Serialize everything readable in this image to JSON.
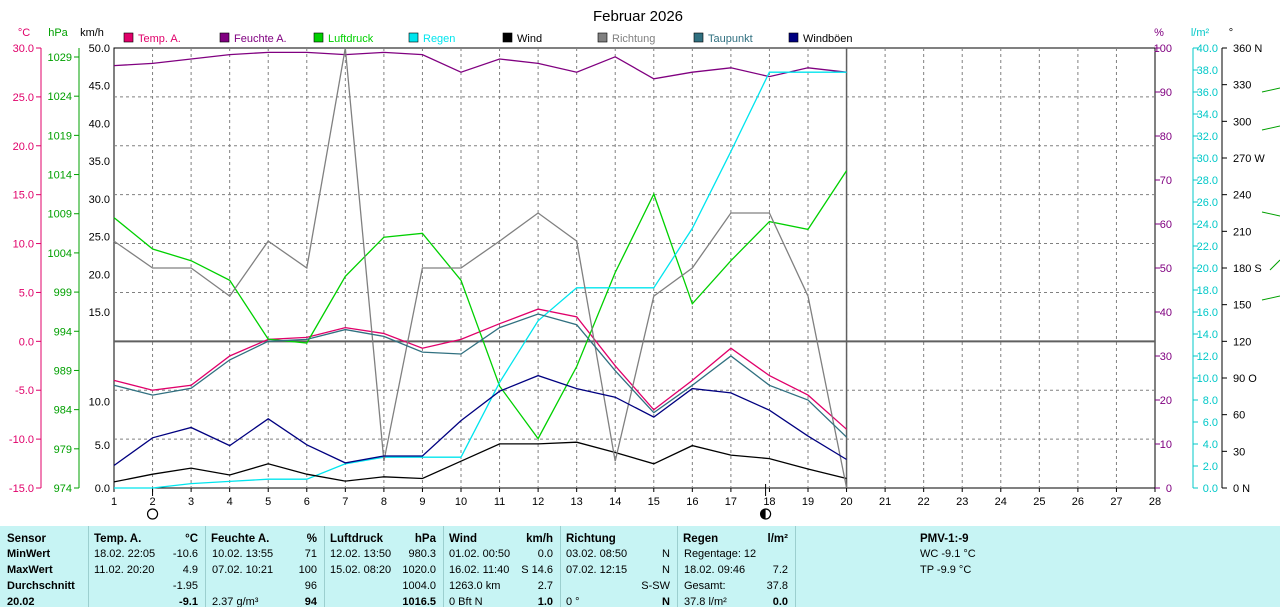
{
  "chart_data": {
    "type": "line",
    "title": "Februar 2026",
    "axis_units": {
      "temp": "°C",
      "pressure": "hPa",
      "wind": "km/h",
      "humidity": "%",
      "rain": "l/m²",
      "direction": "°"
    },
    "axes": {
      "temp_ticks": [
        "30.0",
        "25.0",
        "20.0",
        "15.0",
        "10.0",
        "5.0",
        "0.0",
        "-5.0",
        "-10.0",
        "-15.0"
      ],
      "temp_range": [
        -15,
        30
      ],
      "pressure_ticks": [
        "1029",
        "1024",
        "1019",
        "1014",
        "1009",
        "1004",
        "999",
        "994",
        "989",
        "984",
        "979",
        "974"
      ],
      "pressure_range": [
        974,
        1029
      ],
      "wind_upper_ticks": [
        "50.0",
        "45.0",
        "40.0",
        "35.0",
        "30.0",
        "25.0",
        "20.0"
      ],
      "wind_lower_ticks": [
        "15.0",
        "10.0",
        "5.0",
        "0.0"
      ],
      "wind_upper_range": [
        15,
        50
      ],
      "wind_lower_range": [
        0,
        17
      ],
      "humidity_ticks": [
        "100",
        "90",
        "80",
        "70",
        "60",
        "50",
        "40",
        "30",
        "20",
        "10",
        "0"
      ],
      "humidity_range": [
        0,
        100
      ],
      "rain_ticks": [
        "40.0",
        "38.0",
        "36.0",
        "34.0",
        "32.0",
        "30.0",
        "28.0",
        "26.0",
        "24.0",
        "22.0",
        "20.0",
        "18.0",
        "16.0",
        "14.0",
        "12.0",
        "10.0",
        "8.0",
        "6.0",
        "4.0",
        "2.0",
        "0.0"
      ],
      "rain_range": [
        0,
        40
      ],
      "direction_ticks": [
        "360 N",
        "330",
        "300",
        "270 W",
        "240",
        "210",
        "180 S",
        "150",
        "120",
        "90 O",
        "60",
        "30",
        "0 N"
      ],
      "direction_range": [
        0,
        360
      ],
      "x_ticks": [
        "1",
        "2",
        "3",
        "4",
        "5",
        "6",
        "7",
        "8",
        "9",
        "10",
        "11",
        "12",
        "13",
        "14",
        "15",
        "16",
        "17",
        "18",
        "19",
        "20",
        "21",
        "22",
        "23",
        "24",
        "25",
        "26",
        "27",
        "28"
      ],
      "x_range": [
        1,
        28
      ],
      "moon_first_quarter_day": 2,
      "moon_full_day": 17.9
    },
    "legend": [
      {
        "name": "Temp. A.",
        "color": "#e0006a"
      },
      {
        "name": "Feuchte A.",
        "color": "#800080"
      },
      {
        "name": "Luftdruck",
        "color": "#00d000"
      },
      {
        "name": "Regen",
        "color": "#00e5ee"
      },
      {
        "name": "Wind",
        "color": "#000000"
      },
      {
        "name": "Richtung",
        "color": "#808080"
      },
      {
        "name": "Taupunkt",
        "color": "#307080"
      },
      {
        "name": "Windböen",
        "color": "#000080"
      }
    ],
    "x": [
      1,
      2,
      3,
      4,
      5,
      6,
      7,
      8,
      9,
      10,
      11,
      12,
      13,
      14,
      15,
      16,
      17,
      18,
      19,
      20
    ],
    "series": [
      {
        "name": "Temp. A.",
        "axis": "temp",
        "color": "#e0006a",
        "values": [
          -4,
          -5,
          -4.5,
          -1.5,
          0.2,
          0.4,
          1.4,
          0.8,
          -0.7,
          0.2,
          1.8,
          3.3,
          2.5,
          -2.5,
          -7,
          -4,
          -0.7,
          -3.5,
          -5.5,
          -9
        ]
      },
      {
        "name": "Feuchte A.",
        "axis": "humidity",
        "color": "#800080",
        "values": [
          96,
          96.5,
          97.5,
          98.5,
          99,
          99,
          98.5,
          99,
          98.5,
          94.5,
          97.5,
          96.5,
          94.5,
          98,
          93,
          94.5,
          95.5,
          93.5,
          95.5,
          94.5
        ]
      },
      {
        "name": "Luftdruck",
        "axis": "pressure",
        "color": "#00d000",
        "values": [
          1008.5,
          1004.5,
          1003,
          1000.5,
          993,
          992.5,
          1001,
          1006,
          1006.5,
          1000.5,
          987,
          980.3,
          989.5,
          1001.5,
          1011.5,
          997.5,
          1003,
          1008,
          1007,
          1014.5
        ]
      },
      {
        "name": "Regen",
        "axis": "rain",
        "color": "#00e5ee",
        "values": [
          0,
          0,
          0.4,
          0.6,
          0.8,
          0.8,
          2.2,
          2.8,
          2.8,
          2.8,
          9.6,
          15.2,
          18.2,
          18.2,
          18.2,
          23.6,
          30.6,
          37.8,
          37.8,
          37.8
        ]
      },
      {
        "name": "Wind",
        "axis": "wind",
        "color": "#000000",
        "values": [
          0.7,
          1.6,
          2.3,
          1.5,
          2.8,
          1.6,
          0.8,
          1.3,
          1.1,
          3.1,
          5.1,
          5.1,
          5.3,
          4.1,
          2.8,
          4.9,
          3.8,
          3.4,
          2.2,
          1.1
        ]
      },
      {
        "name": "Richtung",
        "axis": "direction",
        "color": "#808080",
        "values": [
          202,
          180,
          180,
          157,
          202,
          180,
          360,
          22,
          180,
          180,
          202,
          225,
          202,
          22,
          157,
          180,
          225,
          225,
          157,
          0
        ]
      },
      {
        "name": "Taupunkt",
        "axis": "temp",
        "color": "#307080",
        "values": [
          -4.5,
          -5.5,
          -4.8,
          -1.9,
          0,
          0.2,
          1.2,
          0.5,
          -1.1,
          -1.3,
          1.4,
          2.8,
          1.7,
          -3,
          -7.3,
          -4.5,
          -1.5,
          -4.5,
          -6,
          -9.8
        ]
      },
      {
        "name": "Windböen",
        "axis": "wind",
        "color": "#000080",
        "values": [
          2.6,
          5.8,
          7,
          4.9,
          8,
          5,
          2.9,
          3.7,
          3.7,
          7.8,
          11.2,
          13,
          11.5,
          10.5,
          8.2,
          11.5,
          11,
          9,
          6,
          3.3
        ]
      }
    ]
  },
  "stats": {
    "headers": {
      "sensor": "Sensor",
      "temp": "Temp. A.",
      "temp_unit": "°C",
      "humidity": "Feuchte A.",
      "humidity_unit": "%",
      "pressure": "Luftdruck",
      "pressure_unit": "hPa",
      "wind": "Wind",
      "wind_unit": "km/h",
      "direction": "Richtung",
      "rain": "Regen",
      "rain_unit": "l/m²",
      "pmv": "PMV-1:-9"
    },
    "row_labels": [
      "MinWert",
      "MaxWert",
      "Durchschnitt",
      "20.02"
    ],
    "temp": [
      {
        "time": "18.02.  22:05",
        "value": "-10.6"
      },
      {
        "time": "11.02.  20:20",
        "value": "4.9"
      },
      {
        "time": "",
        "value": "-1.95"
      },
      {
        "time": "",
        "value": "-9.1"
      }
    ],
    "humidity": [
      {
        "time": "10.02.  13:55",
        "value": "71"
      },
      {
        "time": "07.02.  10:21",
        "value": "100"
      },
      {
        "time": "",
        "value": "96"
      },
      {
        "time": "2.37 g/m³",
        "value": "94"
      }
    ],
    "pressure": [
      {
        "time": "12.02.  13:50",
        "value": "980.3"
      },
      {
        "time": "15.02.  08:20",
        "value": "1020.0"
      },
      {
        "time": "",
        "value": "1004.0"
      },
      {
        "time": "",
        "value": "1016.5"
      }
    ],
    "wind": [
      {
        "time": "01.02.  00:50",
        "value": "0.0"
      },
      {
        "time": "16.02.  11:40",
        "value": "S 14.6"
      },
      {
        "time": "1263.0 km",
        "value": "2.7"
      },
      {
        "time": "0 Bft N",
        "value": "1.0"
      }
    ],
    "direction": [
      {
        "time": "03.02.  08:50",
        "value": "N"
      },
      {
        "time": "07.02.  12:15",
        "value": "N"
      },
      {
        "time": "",
        "value": "S-SW"
      },
      {
        "time": "0 °",
        "value": "N"
      }
    ],
    "rain": [
      {
        "label": "Regentage: 12",
        "value": ""
      },
      {
        "label": "18.02.  09:46",
        "value": "7.2"
      },
      {
        "label": "Gesamt:",
        "value": "37.8"
      },
      {
        "label": "37.8 l/m²",
        "value": "0.0"
      }
    ],
    "pmv": [
      "WC -9.1 °C",
      "TP -9.9 °C"
    ]
  }
}
